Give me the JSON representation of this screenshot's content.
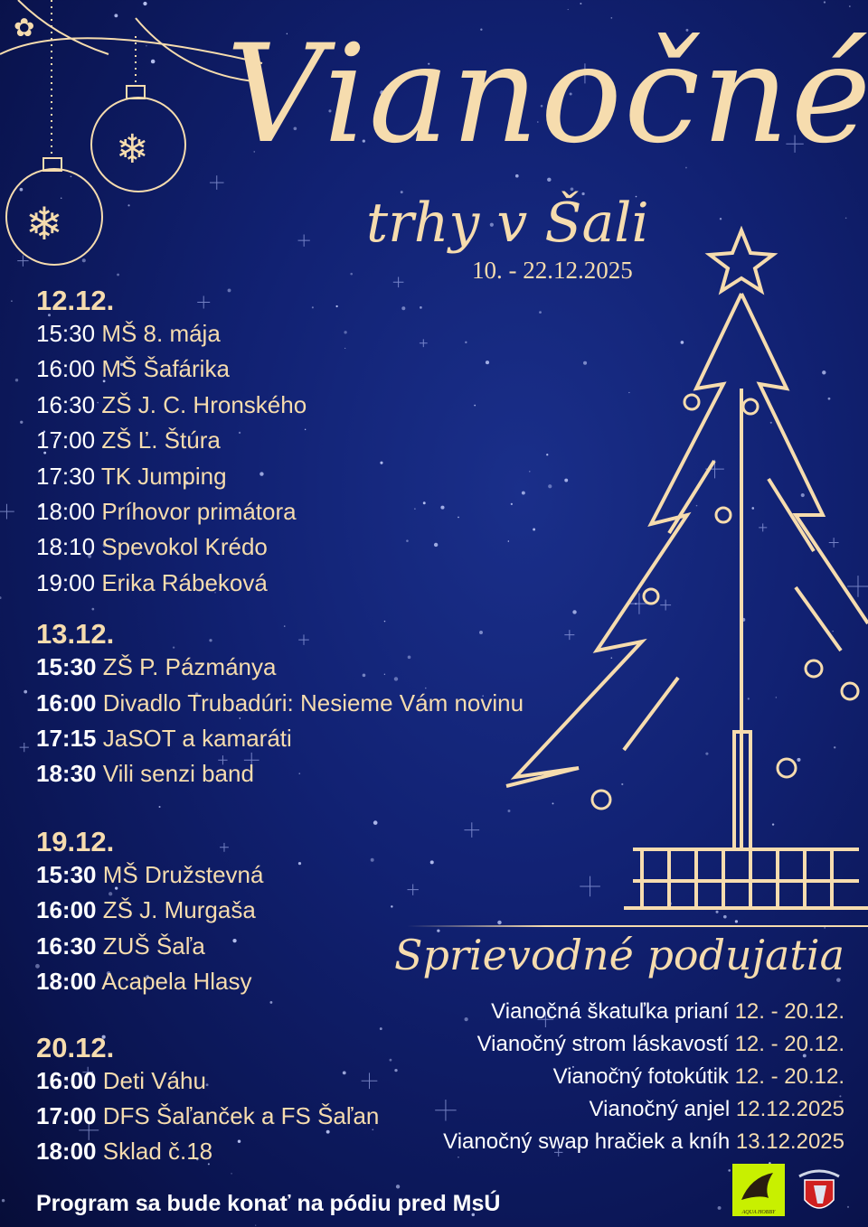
{
  "poster": {
    "title": "Vianočné",
    "subtitle": "trhy v Šali",
    "date_range": "10. - 22.12.2025",
    "colors": {
      "background": "#112172",
      "accent": "#f6dcae",
      "text": "#ffffff"
    },
    "program": [
      {
        "date": "12.12.",
        "events": [
          {
            "time": "15:30",
            "name": "MŠ 8. mája"
          },
          {
            "time": "16:00",
            "name": "MŠ Šafárika"
          },
          {
            "time": "16:30",
            "name": "ZŠ J. C. Hronského"
          },
          {
            "time": "17:00",
            "name": "ZŠ Ľ. Štúra"
          },
          {
            "time": "17:30",
            "name": "TK Jumping"
          },
          {
            "time": "18:00",
            "name": "Príhovor primátora"
          },
          {
            "time": "18:10",
            "name": "Spevokol Krédo"
          },
          {
            "time": "19:00",
            "name": "Erika Rábeková"
          }
        ]
      },
      {
        "date": "13.12.",
        "events": [
          {
            "time": "15:30",
            "name": "ZŠ P. Pázmánya"
          },
          {
            "time": "16:00",
            "name": "Divadlo Trubadúri: Nesieme Vám novinu"
          },
          {
            "time": "17:15",
            "name": "JaSOT a kamaráti"
          },
          {
            "time": "18:30",
            "name": "Vili senzi band"
          }
        ]
      },
      {
        "date": "19.12.",
        "events": [
          {
            "time": "15:30",
            "name": "MŠ Družstevná"
          },
          {
            "time": "16:00",
            "name": "ZŠ J. Murgaša"
          },
          {
            "time": "16:30",
            "name": "ZUŠ Šaľa"
          },
          {
            "time": "18:00",
            "name": "Acapela Hlasy"
          }
        ]
      },
      {
        "date": "20.12.",
        "events": [
          {
            "time": "16:00",
            "name": "Deti Váhu"
          },
          {
            "time": "17:00",
            "name": "DFS Šaľanček a FS Šaľan"
          },
          {
            "time": "18:00",
            "name": "Sklad č.18"
          }
        ]
      }
    ],
    "side_events_title": "Sprievodné podujatia",
    "side_events": [
      {
        "name": "Vianočná škatuľka prianí",
        "date": "12. - 20.12."
      },
      {
        "name": "Vianočný strom láskavostí",
        "date": "12. - 20.12."
      },
      {
        "name": "Vianočný fotokútik",
        "date": "12. - 20.12."
      },
      {
        "name": "Vianočný anjel",
        "date": "12.12.2025"
      },
      {
        "name": "Vianočný swap hračiek a kníh",
        "date": "13.12.2025"
      }
    ],
    "footer": "Program sa bude konať na pódiu pred MsÚ",
    "logos": [
      "AQUA HOBBY",
      "city-coat-of-arms"
    ]
  }
}
